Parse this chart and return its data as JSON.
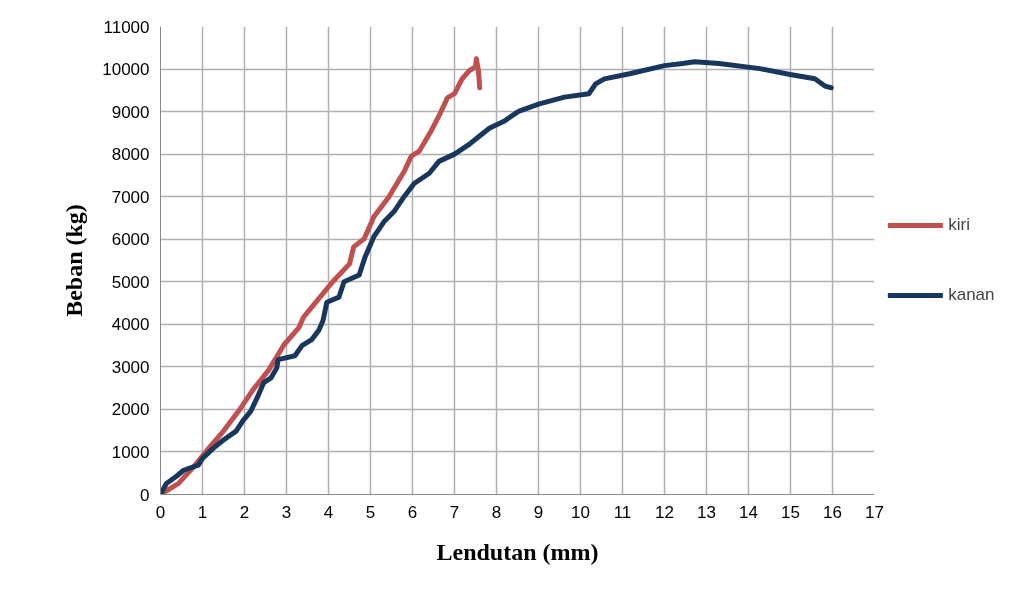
{
  "chart_data": {
    "type": "line",
    "xlabel": "Lendutan (mm)",
    "ylabel": "Beban (kg)",
    "xlim": [
      0,
      17
    ],
    "xticks": [
      0,
      1,
      2,
      3,
      4,
      5,
      6,
      7,
      8,
      9,
      10,
      11,
      12,
      13,
      14,
      15,
      16,
      17
    ],
    "ylim": [
      0,
      11000
    ],
    "yticks": [
      0,
      1000,
      2000,
      3000,
      4000,
      5000,
      6000,
      7000,
      8000,
      9000,
      10000,
      11000
    ],
    "grid": true,
    "legend": "right",
    "marker": "none",
    "line_style": "solid",
    "series": [
      {
        "name": "kiri",
        "color": "#c0504d",
        "x": [
          0,
          0.43,
          0.8,
          1.15,
          1.5,
          1.86,
          2.2,
          2.58,
          2.94,
          3.3,
          3.4,
          3.7,
          4.1,
          4.5,
          4.6,
          4.85,
          5.08,
          5.44,
          5.8,
          5.97,
          6.16,
          6.44,
          6.63,
          6.83,
          7.0,
          7.18,
          7.35,
          7.5,
          7.52,
          7.57,
          7.6
        ],
        "values": [
          0,
          260,
          660,
          1090,
          1490,
          1960,
          2460,
          2930,
          3520,
          3930,
          4160,
          4520,
          5000,
          5420,
          5820,
          6010,
          6530,
          7000,
          7590,
          7950,
          8070,
          8540,
          8900,
          9320,
          9420,
          9770,
          9960,
          10050,
          10240,
          9960,
          9560
        ]
      },
      {
        "name": "kanan",
        "color": "#17375e",
        "x": [
          0,
          0.14,
          0.38,
          0.55,
          0.9,
          1.0,
          1.26,
          1.5,
          1.8,
          1.96,
          2.15,
          2.3,
          2.46,
          2.63,
          2.77,
          2.8,
          3.2,
          3.37,
          3.6,
          3.77,
          3.87,
          3.96,
          4.25,
          4.37,
          4.73,
          4.87,
          5.08,
          5.32,
          5.56,
          5.8,
          6.04,
          6.4,
          6.63,
          7.0,
          7.35,
          7.59,
          7.83,
          8.19,
          8.47,
          8.54,
          9.02,
          9.62,
          10.2,
          10.36,
          10.57,
          11.17,
          12.0,
          12.43,
          12.72,
          13.3,
          14.27,
          14.99,
          15.58,
          15.82,
          15.97
        ],
        "values": [
          0,
          260,
          430,
          570,
          690,
          850,
          1090,
          1280,
          1490,
          1730,
          1960,
          2270,
          2630,
          2740,
          2980,
          3170,
          3260,
          3500,
          3640,
          3860,
          4090,
          4520,
          4640,
          5000,
          5160,
          5580,
          6060,
          6410,
          6650,
          7000,
          7310,
          7550,
          7830,
          8000,
          8230,
          8420,
          8610,
          8780,
          8970,
          9010,
          9180,
          9340,
          9420,
          9650,
          9770,
          9890,
          10080,
          10130,
          10170,
          10130,
          10010,
          9870,
          9770,
          9600,
          9560
        ]
      }
    ]
  }
}
